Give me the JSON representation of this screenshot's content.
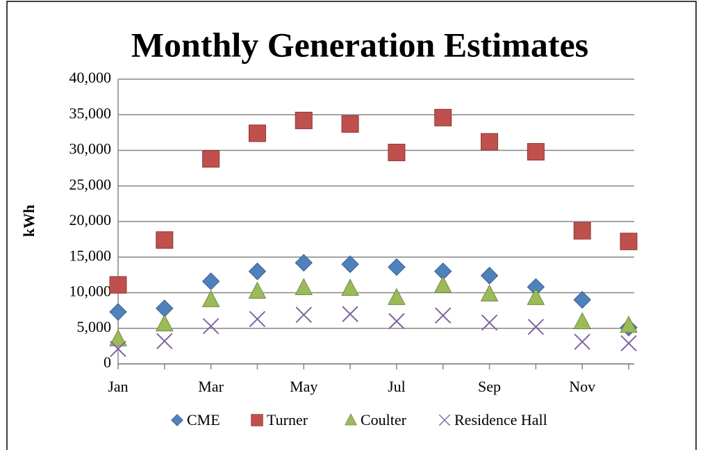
{
  "chart_data": {
    "type": "scatter",
    "title": "Monthly Generation Estimates",
    "y_label": "kWh",
    "categories": [
      "Jan",
      null,
      "Mar",
      null,
      "May",
      null,
      "Jul",
      null,
      "Sep",
      null,
      "Nov",
      null
    ],
    "series": [
      {
        "name": "CME",
        "color": "#4f81bd",
        "marker": "diamond",
        "values": [
          7300,
          7800,
          11600,
          13000,
          14200,
          14000,
          13600,
          13000,
          12400,
          10800,
          9000,
          5100
        ]
      },
      {
        "name": "Turner",
        "color": "#c0504d",
        "marker": "square",
        "values": [
          11100,
          17400,
          28800,
          32400,
          34200,
          33700,
          29700,
          34600,
          31200,
          29800,
          18700,
          17200
        ]
      },
      {
        "name": "Coulter",
        "color": "#9bbb59",
        "marker": "triangle",
        "values": [
          3500,
          5600,
          9000,
          10200,
          10700,
          10600,
          9300,
          11000,
          9800,
          9300,
          5900,
          5400
        ]
      },
      {
        "name": "Residence Hall",
        "color": "#8064a2",
        "marker": "x",
        "values": [
          2100,
          3200,
          5300,
          6300,
          6900,
          7000,
          6000,
          6800,
          5800,
          5200,
          3100,
          2900
        ]
      }
    ],
    "ylim": [
      0,
      40000
    ],
    "yticks": [
      0,
      {
        "value": 5000,
        "label": "5,000"
      },
      {
        "value": 10000,
        "label": "10,000"
      },
      {
        "value": 15000,
        "label": "15,000"
      },
      {
        "value": 20000,
        "label": "20,000"
      },
      {
        "value": 25000,
        "label": "25,000"
      },
      {
        "value": 30000,
        "label": "30,000"
      },
      {
        "value": 35000,
        "label": "35,000"
      },
      {
        "value": 40000,
        "label": "40,000"
      }
    ],
    "grid": true,
    "legend": "bottom"
  }
}
